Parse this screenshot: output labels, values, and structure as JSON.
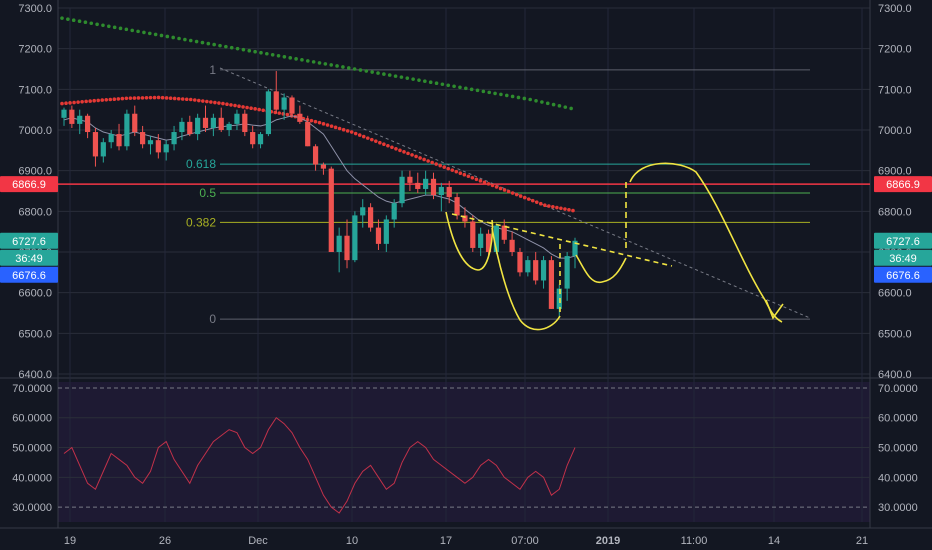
{
  "chart_data": [
    {
      "type": "candlestick",
      "ylim": [
        6400,
        7300
      ],
      "y_ticks": [
        "7300.0",
        "7200.0",
        "7100.0",
        "7000.0",
        "6900.0",
        "6800.0",
        "6700.0",
        "6600.0",
        "6500.0",
        "6400.0"
      ],
      "x_ticks": [
        "19",
        "26",
        "Dec",
        "10",
        "17",
        "07:00",
        "2019",
        "11:00",
        "14",
        "21"
      ],
      "fib_labels": [
        "1",
        "0.618",
        "0.5",
        "0.382",
        "0"
      ],
      "fib_levels": [
        7148,
        6916,
        6845,
        6773,
        6535
      ],
      "price_badges": [
        {
          "label": "6866.9",
          "value": 6866.9,
          "color": "#f23645"
        },
        {
          "label": "6727.6",
          "value": 6727.6,
          "color": "#26a69a"
        },
        {
          "label": "36:49",
          "value": 6690,
          "color": "#26a69a"
        },
        {
          "label": "6676.6",
          "value": 6676.6,
          "color": "#2962ff"
        }
      ],
      "resistance_level": 6866.9,
      "candles": [
        [
          7030,
          7055,
          7010,
          7050
        ],
        [
          7050,
          7060,
          7005,
          7015
        ],
        [
          7015,
          7050,
          6990,
          7035
        ],
        [
          7035,
          7040,
          6980,
          6995
        ],
        [
          6995,
          7005,
          6910,
          6935
        ],
        [
          6935,
          6980,
          6920,
          6970
        ],
        [
          6970,
          7000,
          6955,
          6990
        ],
        [
          6990,
          7015,
          6950,
          6960
        ],
        [
          6960,
          7050,
          6950,
          7040
        ],
        [
          7040,
          7060,
          6985,
          6995
        ],
        [
          6995,
          7010,
          6955,
          6965
        ],
        [
          6965,
          6985,
          6940,
          6975
        ],
        [
          6975,
          6990,
          6930,
          6945
        ],
        [
          6945,
          6975,
          6925,
          6965
        ],
        [
          6965,
          7010,
          6950,
          6995
        ],
        [
          6995,
          7030,
          6975,
          7020
        ],
        [
          7020,
          7035,
          6985,
          6990
        ],
        [
          6990,
          7040,
          6975,
          7030
        ],
        [
          7030,
          7060,
          6995,
          7005
        ],
        [
          7005,
          7040,
          6985,
          7030
        ],
        [
          7030,
          7055,
          6995,
          7000
        ],
        [
          7000,
          7020,
          6985,
          7015
        ],
        [
          7015,
          7050,
          7000,
          7040
        ],
        [
          7040,
          7050,
          6985,
          6995
        ],
        [
          6995,
          7010,
          6955,
          6965
        ],
        [
          6965,
          6995,
          6955,
          6990
        ],
        [
          6990,
          7100,
          6985,
          7095
        ],
        [
          7095,
          7145,
          7040,
          7050
        ],
        [
          7050,
          7090,
          7025,
          7080
        ],
        [
          7080,
          7085,
          7030,
          7040
        ],
        [
          7040,
          7060,
          7015,
          7020
        ],
        [
          7020,
          7035,
          6960,
          6960
        ],
        [
          6960,
          6965,
          6900,
          6915
        ],
        [
          6915,
          6920,
          6890,
          6905
        ],
        [
          6905,
          6910,
          6700,
          6700
        ],
        [
          6700,
          6760,
          6650,
          6740
        ],
        [
          6740,
          6780,
          6660,
          6680
        ],
        [
          6680,
          6800,
          6675,
          6790
        ],
        [
          6790,
          6830,
          6760,
          6810
        ],
        [
          6810,
          6820,
          6750,
          6760
        ],
        [
          6760,
          6780,
          6705,
          6720
        ],
        [
          6720,
          6790,
          6700,
          6780
        ],
        [
          6780,
          6830,
          6760,
          6820
        ],
        [
          6820,
          6900,
          6810,
          6885
        ],
        [
          6885,
          6900,
          6850,
          6870
        ],
        [
          6870,
          6895,
          6845,
          6855
        ],
        [
          6855,
          6900,
          6840,
          6880
        ],
        [
          6880,
          6895,
          6830,
          6840
        ],
        [
          6840,
          6870,
          6800,
          6860
        ],
        [
          6860,
          6875,
          6820,
          6835
        ],
        [
          6835,
          6845,
          6780,
          6790
        ],
        [
          6790,
          6810,
          6760,
          6775
        ],
        [
          6775,
          6790,
          6700,
          6710
        ],
        [
          6710,
          6760,
          6690,
          6745
        ],
        [
          6745,
          6755,
          6690,
          6700
        ],
        [
          6700,
          6770,
          6695,
          6765
        ],
        [
          6765,
          6780,
          6720,
          6730
        ],
        [
          6730,
          6750,
          6690,
          6700
        ],
        [
          6700,
          6710,
          6640,
          6650
        ],
        [
          6650,
          6690,
          6640,
          6680
        ],
        [
          6680,
          6700,
          6620,
          6630
        ],
        [
          6630,
          6690,
          6610,
          6680
        ],
        [
          6680,
          6690,
          6560,
          6560
        ],
        [
          6560,
          6620,
          6540,
          6610
        ],
        [
          6610,
          6700,
          6580,
          6690
        ],
        [
          6690,
          6735,
          6660,
          6727.6
        ]
      ],
      "ma_line": [
        7025,
        7030,
        7025,
        7020,
        7005,
        6995,
        6990,
        6985,
        6990,
        6995,
        6990,
        6985,
        6980,
        6975,
        6978,
        6985,
        6990,
        6995,
        7000,
        7005,
        7008,
        7010,
        7012,
        7015,
        7012,
        7010,
        7015,
        7025,
        7030,
        7035,
        7030,
        7020,
        7005,
        6990,
        6960,
        6930,
        6900,
        6880,
        6865,
        6850,
        6835,
        6825,
        6820,
        6825,
        6830,
        6835,
        6840,
        6840,
        6835,
        6830,
        6820,
        6805,
        6790,
        6775,
        6765,
        6760,
        6755,
        6750,
        6740,
        6730,
        6720,
        6710,
        6695,
        6685,
        6685,
        6690
      ],
      "dotted_ma_red": [
        7065,
        7072,
        7078,
        7080,
        7075,
        7065,
        7052,
        7038,
        7018,
        6995,
        6965,
        6935,
        6905,
        6875,
        6845,
        6815,
        6800
      ],
      "dotted_ma_green": [
        7275,
        7255,
        7235,
        7215,
        7195,
        7175,
        7155,
        7135,
        7115,
        7095,
        7075,
        7050
      ],
      "rsi": {
        "y_ticks": [
          "70.0000",
          "60.0000",
          "50.0000",
          "40.0000",
          "30.0000"
        ],
        "ylim": [
          25,
          72
        ],
        "values": [
          48,
          50,
          44,
          38,
          36,
          42,
          48,
          46,
          44,
          40,
          38,
          42,
          50,
          52,
          46,
          42,
          38,
          44,
          48,
          52,
          54,
          56,
          55,
          50,
          48,
          50,
          56,
          60,
          58,
          55,
          50,
          46,
          40,
          34,
          30,
          28,
          32,
          38,
          42,
          44,
          40,
          36,
          38,
          45,
          50,
          52,
          50,
          46,
          44,
          42,
          40,
          38,
          40,
          44,
          46,
          44,
          40,
          38,
          36,
          40,
          42,
          40,
          34,
          36,
          44,
          50
        ]
      }
    }
  ]
}
